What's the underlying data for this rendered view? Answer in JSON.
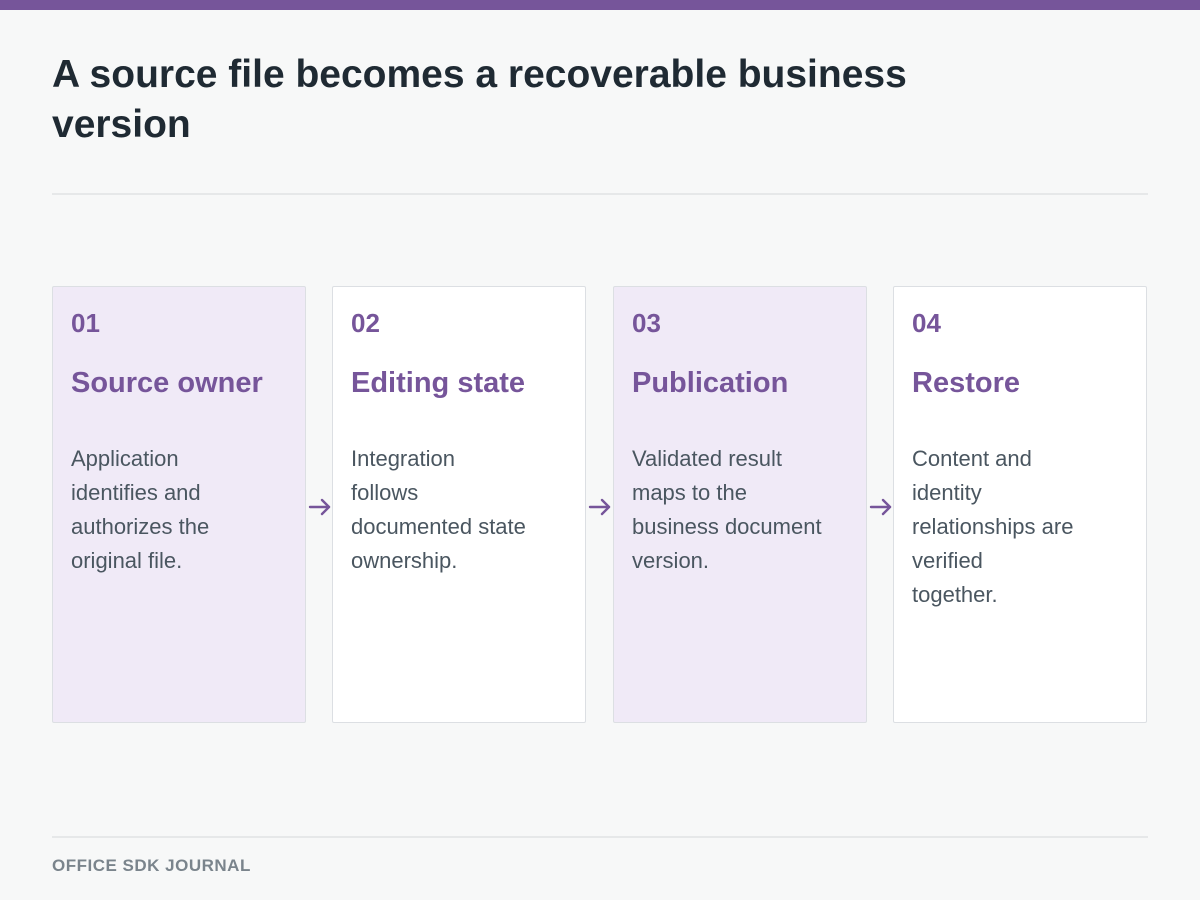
{
  "colors": {
    "accent": "#76559a",
    "title_text": "#1f2a33",
    "body_text": "#4a5660",
    "shaded_card": "#f0eaf7",
    "plain_card": "#ffffff",
    "footer_text": "#7a848c"
  },
  "title": "A source file becomes a recoverable business version",
  "steps": [
    {
      "number": "01",
      "title": "Source owner",
      "lines": [
        "Application",
        "identifies and",
        "authorizes the",
        "original file."
      ]
    },
    {
      "number": "02",
      "title": "Editing state",
      "lines": [
        "Integration",
        "follows",
        "documented state",
        "ownership."
      ]
    },
    {
      "number": "03",
      "title": "Publication",
      "lines": [
        "Validated result",
        "maps to the",
        "business document",
        "version."
      ]
    },
    {
      "number": "04",
      "title": "Restore",
      "lines": [
        "Content and",
        "identity",
        "relationships are",
        "verified",
        "together."
      ]
    }
  ],
  "footer": "OFFICE SDK JOURNAL"
}
